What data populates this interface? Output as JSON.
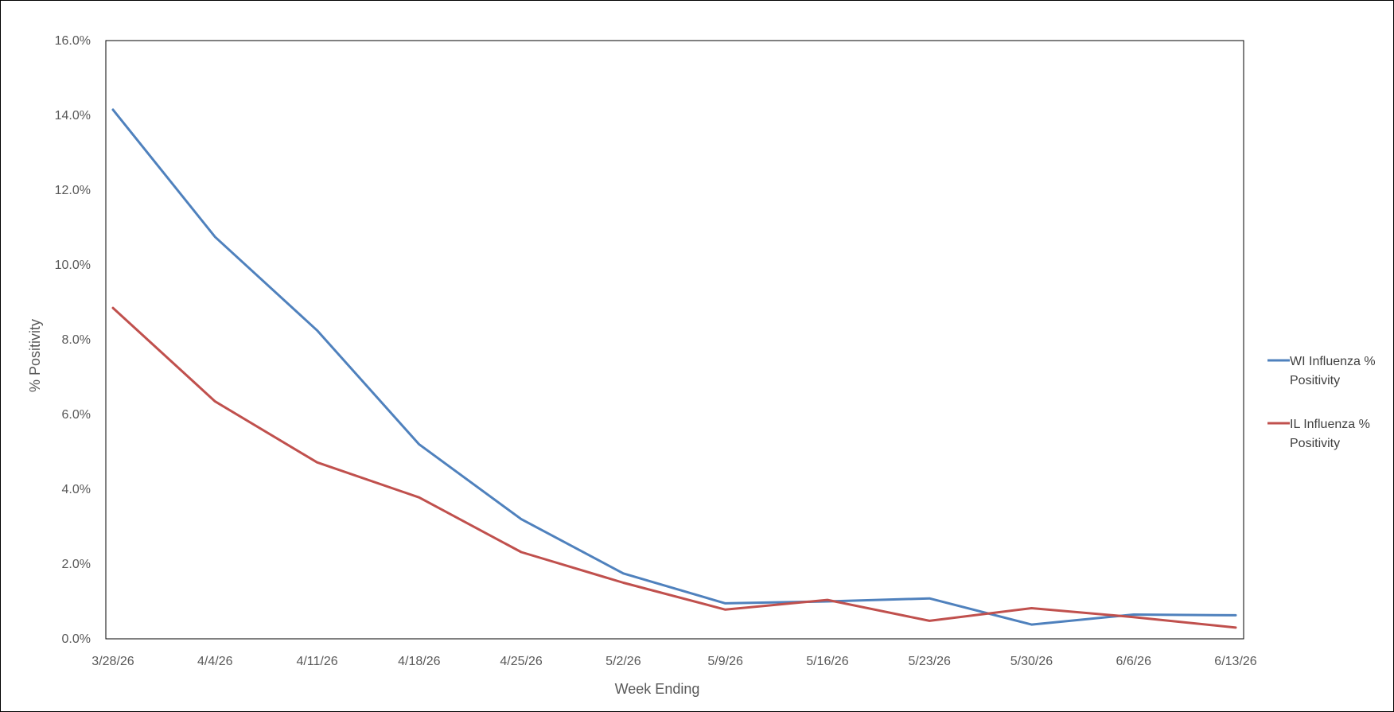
{
  "chart_data": {
    "type": "line",
    "title": "",
    "xlabel": "Week Ending",
    "ylabel": "% Positivity",
    "categories": [
      "3/28/26",
      "4/4/26",
      "4/11/26",
      "4/18/26",
      "4/25/26",
      "5/2/26",
      "5/9/26",
      "5/16/26",
      "5/23/26",
      "5/30/26",
      "6/6/26",
      "6/13/26"
    ],
    "ylim": [
      0,
      16
    ],
    "yticks": [
      "0.0%",
      "2.0%",
      "4.0%",
      "6.0%",
      "8.0%",
      "10.0%",
      "12.0%",
      "14.0%",
      "16.0%"
    ],
    "grid": false,
    "legend_position": "right",
    "series": [
      {
        "name": "WI Influenza % Positivity",
        "color": "#4f81bd",
        "values": [
          14.15,
          10.75,
          8.25,
          5.2,
          3.2,
          1.75,
          0.95,
          1.0,
          1.08,
          0.38,
          0.65,
          0.63
        ]
      },
      {
        "name": "IL Influenza % Positivity",
        "color": "#c0504d",
        "values": [
          8.85,
          6.35,
          4.72,
          3.78,
          2.32,
          1.5,
          0.78,
          1.04,
          0.48,
          0.82,
          0.58,
          0.3
        ]
      }
    ],
    "legend": [
      {
        "line1": "WI Influenza %",
        "line2": "Positivity"
      },
      {
        "line1": "IL Influenza %",
        "line2": "Positivity"
      }
    ]
  }
}
